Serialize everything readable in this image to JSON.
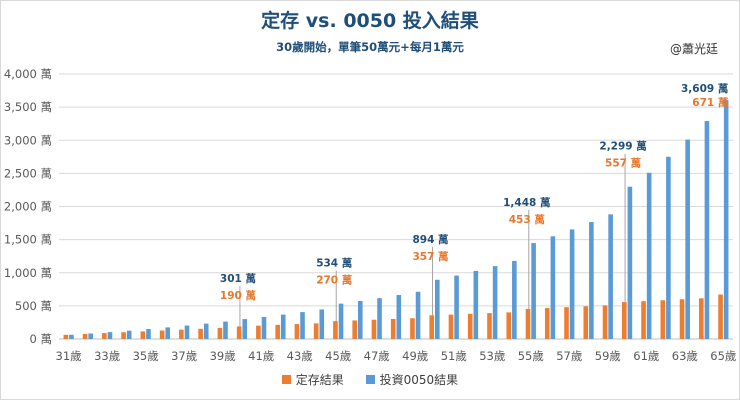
{
  "header": {
    "title": "定存 vs. 0050 投入結果",
    "subtitle": "30歲開始，單筆50萬元+每月1萬元",
    "author": "@蕭光廷"
  },
  "colors": {
    "deposit": "#ed7d31",
    "invest": "#5b9bd5",
    "deposit_label": "#e8762b",
    "invest_label": "#1f4e79",
    "grid": "#d9d9d9",
    "axis_text": "#595959"
  },
  "chart_data": {
    "type": "bar",
    "title": "定存 vs. 0050 投入結果",
    "subtitle": "30歲開始，單筆50萬元+每月1萬元",
    "categories": [
      "31歲",
      "32歲",
      "33歲",
      "34歲",
      "35歲",
      "36歲",
      "37歲",
      "38歲",
      "39歲",
      "40歲",
      "41歲",
      "42歲",
      "43歲",
      "44歲",
      "45歲",
      "46歲",
      "47歲",
      "48歲",
      "49歲",
      "50歲",
      "51歲",
      "52歲",
      "53歲",
      "54歲",
      "55歲",
      "56歲",
      "57歲",
      "58歲",
      "59歲",
      "60歲",
      "61歲",
      "62歲",
      "63歲",
      "64歲",
      "65歲"
    ],
    "x_tick_labels": [
      "31歲",
      "",
      "33歲",
      "",
      "35歲",
      "",
      "37歲",
      "",
      "39歲",
      "",
      "41歲",
      "",
      "43歲",
      "",
      "45歲",
      "",
      "47歲",
      "",
      "49歲",
      "",
      "51歲",
      "",
      "53歲",
      "",
      "55歲",
      "",
      "57歲",
      "",
      "59歲",
      "",
      "61歲",
      "",
      "63歲",
      "",
      "65歲"
    ],
    "series": [
      {
        "name": "定存結果",
        "values": [
          63,
          76,
          89,
          102,
          115,
          128,
          141,
          154,
          167,
          190,
          202,
          213,
          225,
          236,
          270,
          280,
          291,
          302,
          313,
          357,
          368,
          380,
          391,
          402,
          453,
          467,
          480,
          494,
          508,
          557,
          571,
          585,
          600,
          614,
          671
        ]
      },
      {
        "name": "投資0050結果",
        "values": [
          64,
          83,
          104,
          126,
          150,
          175,
          203,
          232,
          263,
          301,
          333,
          368,
          406,
          446,
          534,
          574,
          617,
          664,
          713,
          894,
          957,
          1027,
          1100,
          1179,
          1448,
          1550,
          1654,
          1765,
          1881,
          2299,
          2509,
          2751,
          3010,
          3290,
          3609
        ]
      }
    ],
    "y_ticks": [
      0,
      500,
      1000,
      1500,
      2000,
      2500,
      3000,
      3500,
      4000
    ],
    "y_tick_labels": [
      "0 萬",
      "500 萬",
      "1,000 萬",
      "1,500 萬",
      "2,000 萬",
      "2,500 萬",
      "3,000 萬",
      "3,500 萬",
      "4,000 萬"
    ],
    "ylim": [
      0,
      4000
    ],
    "legend": [
      "定存結果",
      "投資0050結果"
    ],
    "legend_position": "bottom",
    "grid": true,
    "annotations": [
      {
        "category_index": 9,
        "series": 0,
        "text": "190 萬"
      },
      {
        "category_index": 9,
        "series": 1,
        "text": "301 萬"
      },
      {
        "category_index": 14,
        "series": 0,
        "text": "270 萬"
      },
      {
        "category_index": 14,
        "series": 1,
        "text": "534 萬"
      },
      {
        "category_index": 19,
        "series": 0,
        "text": "357 萬"
      },
      {
        "category_index": 19,
        "series": 1,
        "text": "894 萬"
      },
      {
        "category_index": 24,
        "series": 0,
        "text": "453 萬"
      },
      {
        "category_index": 24,
        "series": 1,
        "text": "1,448 萬"
      },
      {
        "category_index": 29,
        "series": 0,
        "text": "557 萬"
      },
      {
        "category_index": 29,
        "series": 1,
        "text": "2,299 萬"
      },
      {
        "category_index": 34,
        "series": 0,
        "text": "671 萬"
      },
      {
        "category_index": 34,
        "series": 1,
        "text": "3,609 萬"
      }
    ]
  }
}
